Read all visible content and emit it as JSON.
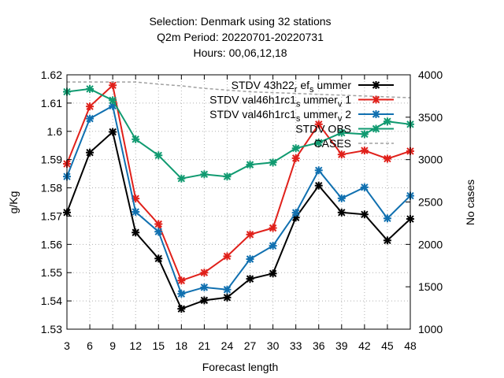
{
  "chart_data": {
    "type": "line",
    "title_lines": [
      "Selection: Denmark using    32 stations",
      "Q2m   Period: 20220701-20220731",
      "Hours:  00,06,12,18"
    ],
    "xlabel": "Forecast length",
    "ylabel": "g/Kg",
    "y2label": "No cases",
    "x": [
      3,
      6,
      9,
      12,
      15,
      18,
      21,
      24,
      27,
      30,
      33,
      36,
      39,
      42,
      45,
      48
    ],
    "xlim": [
      3,
      48
    ],
    "ylim": [
      1.53,
      1.62
    ],
    "yticks": [
      "1.53",
      "1.54",
      "1.55",
      "1.56",
      "1.57",
      "1.58",
      "1.59",
      "1.6",
      "1.61",
      "1.62"
    ],
    "y2lim": [
      1000,
      4000
    ],
    "y2ticks": [
      "1000",
      "1500",
      "2000",
      "2500",
      "3000",
      "3500",
      "4000"
    ],
    "grid": true,
    "legend_position": "top-right",
    "series": [
      {
        "name": "STDV 43h22_r ef_s ummer",
        "color": "#000000",
        "axis": "left",
        "values": [
          1.5713,
          1.5925,
          1.5998,
          1.5642,
          1.555,
          1.5372,
          1.5402,
          1.5412,
          1.5478,
          1.5497,
          1.5695,
          1.5808,
          1.5713,
          1.5706,
          1.5614,
          1.569
        ]
      },
      {
        "name": "STDV val46h1rc1_s ummer_v 1",
        "color": "#e0201a",
        "axis": "left",
        "values": [
          1.5885,
          1.6088,
          1.6163,
          1.5762,
          1.5672,
          1.5472,
          1.55,
          1.5558,
          1.5635,
          1.5658,
          1.5905,
          1.6025,
          1.5918,
          1.5932,
          1.5903,
          1.593
        ]
      },
      {
        "name": "STDV val46h1rc1_s ummer_v 2",
        "color": "#1070b0",
        "axis": "left",
        "values": [
          1.584,
          1.6045,
          1.609,
          1.5715,
          1.5645,
          1.5425,
          1.5448,
          1.544,
          1.5548,
          1.5595,
          1.5712,
          1.5862,
          1.5763,
          1.5802,
          1.5692,
          1.5772
        ]
      },
      {
        "name": "STDV OBS",
        "color": "#109a70",
        "axis": "left",
        "values": [
          1.614,
          1.615,
          1.611,
          1.5972,
          1.5915,
          1.5833,
          1.5848,
          1.584,
          1.5882,
          1.589,
          1.594,
          1.596,
          1.5995,
          1.599,
          1.6035,
          1.6025
        ]
      },
      {
        "name": "CASES",
        "color": "#a0a0a0",
        "axis": "right",
        "dashed": true,
        "values": [
          3915,
          3915,
          3915,
          3915,
          3890,
          3870,
          3840,
          3820,
          3800,
          3790,
          3780,
          3770,
          3760,
          3750,
          3740,
          3730
        ]
      }
    ]
  }
}
